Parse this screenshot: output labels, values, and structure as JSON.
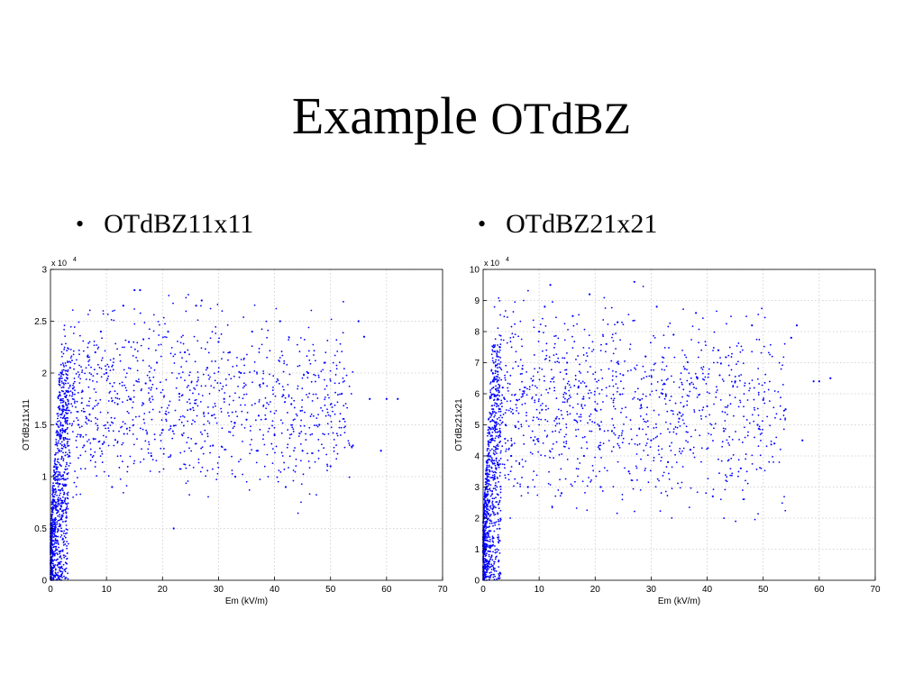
{
  "slide": {
    "title_main": "Example",
    "title_sub": "OTdBZ",
    "bullets": [
      {
        "label": "OTdBZ11x11"
      },
      {
        "label": "OTdBZ21x21"
      }
    ]
  },
  "chart_data": [
    {
      "type": "scatter",
      "xlabel": "Em (kV/m)",
      "ylabel": "OTdBz11x11",
      "xlim": [
        0,
        70
      ],
      "ylim": [
        0,
        30000
      ],
      "x_ticks": [
        0,
        10,
        20,
        30,
        40,
        50,
        60,
        70
      ],
      "y_ticks": [
        0,
        0.5,
        1,
        1.5,
        2,
        2.5,
        3
      ],
      "y_multiplier": "x 10",
      "y_multiplier_exp": "4",
      "grid": true,
      "color": "#0000ff",
      "points": [
        [
          0.3,
          800
        ],
        [
          0.5,
          2500
        ],
        [
          0.8,
          5000
        ],
        [
          1.0,
          7500
        ],
        [
          1.2,
          10000
        ],
        [
          1.5,
          12500
        ],
        [
          1.8,
          14500
        ],
        [
          2.0,
          16000
        ],
        [
          2.5,
          18000
        ],
        [
          3.0,
          19500
        ],
        [
          3.5,
          20500
        ],
        [
          4.0,
          18500
        ],
        [
          5.0,
          15000
        ],
        [
          6.0,
          13000
        ],
        [
          7.0,
          16000
        ],
        [
          8.0,
          22000
        ],
        [
          9.0,
          24000
        ],
        [
          10.0,
          20000
        ],
        [
          11.0,
          9000
        ],
        [
          12.0,
          17000
        ],
        [
          13.0,
          26500
        ],
        [
          14.0,
          23000
        ],
        [
          15.0,
          28000
        ],
        [
          16.0,
          28000
        ],
        [
          17.0,
          19000
        ],
        [
          18.0,
          12000
        ],
        [
          19.0,
          21000
        ],
        [
          20.0,
          14500
        ],
        [
          21.0,
          24000
        ],
        [
          22.0,
          5000
        ],
        [
          23.0,
          18000
        ],
        [
          24.0,
          22000
        ],
        [
          25.0,
          16500
        ],
        [
          26.0,
          26500
        ],
        [
          27.0,
          27000
        ],
        [
          28.0,
          20500
        ],
        [
          29.0,
          13000
        ],
        [
          30.0,
          23000
        ],
        [
          31.0,
          17500
        ],
        [
          32.0,
          22000
        ],
        [
          33.0,
          10000
        ],
        [
          34.0,
          20000
        ],
        [
          35.0,
          15500
        ],
        [
          36.0,
          24000
        ],
        [
          37.0,
          12500
        ],
        [
          38.0,
          19000
        ],
        [
          40.0,
          14000
        ],
        [
          41.0,
          25000
        ],
        [
          42.0,
          9000
        ],
        [
          43.0,
          17000
        ],
        [
          45.0,
          12500
        ],
        [
          46.0,
          20000
        ],
        [
          48.0,
          15000
        ],
        [
          49.0,
          21000
        ],
        [
          50.0,
          11000
        ],
        [
          52.0,
          18000
        ],
        [
          54.0,
          13000
        ],
        [
          55.0,
          25000
        ],
        [
          56.0,
          23500
        ],
        [
          57.0,
          17500
        ],
        [
          59.0,
          12500
        ],
        [
          60.0,
          17500
        ],
        [
          62.0,
          17500
        ]
      ]
    },
    {
      "type": "scatter",
      "xlabel": "Em (kV/m)",
      "ylabel": "OTdBz21x21",
      "xlim": [
        0,
        70
      ],
      "ylim": [
        0,
        100000
      ],
      "x_ticks": [
        0,
        10,
        20,
        30,
        40,
        50,
        60,
        70
      ],
      "y_ticks": [
        0,
        1,
        2,
        3,
        4,
        5,
        6,
        7,
        8,
        9,
        10
      ],
      "y_multiplier": "x 10",
      "y_multiplier_exp": "4",
      "grid": true,
      "color": "#0000ff",
      "points": [
        [
          0.3,
          2000
        ],
        [
          0.5,
          8000
        ],
        [
          0.8,
          15000
        ],
        [
          1.0,
          25000
        ],
        [
          1.2,
          35000
        ],
        [
          1.5,
          45000
        ],
        [
          1.8,
          55000
        ],
        [
          2.0,
          65000
        ],
        [
          2.5,
          72000
        ],
        [
          3.0,
          75000
        ],
        [
          3.5,
          62000
        ],
        [
          4.0,
          50000
        ],
        [
          5.0,
          40000
        ],
        [
          6.0,
          58000
        ],
        [
          7.0,
          68000
        ],
        [
          8.0,
          30000
        ],
        [
          9.0,
          45000
        ],
        [
          10.0,
          80000
        ],
        [
          11.0,
          88000
        ],
        [
          12.0,
          95000
        ],
        [
          13.0,
          52000
        ],
        [
          14.0,
          28000
        ],
        [
          15.0,
          70000
        ],
        [
          16.0,
          85000
        ],
        [
          17.0,
          62000
        ],
        [
          18.0,
          40000
        ],
        [
          19.0,
          92000
        ],
        [
          20.0,
          55000
        ],
        [
          21.0,
          30000
        ],
        [
          22.0,
          76000
        ],
        [
          23.0,
          48000
        ],
        [
          24.0,
          83000
        ],
        [
          25.0,
          66000
        ],
        [
          26.0,
          35000
        ],
        [
          27.0,
          96000
        ],
        [
          28.0,
          58000
        ],
        [
          29.0,
          72000
        ],
        [
          30.0,
          45000
        ],
        [
          31.0,
          88000
        ],
        [
          32.0,
          60000
        ],
        [
          33.0,
          38000
        ],
        [
          34.0,
          79000
        ],
        [
          35.0,
          52000
        ],
        [
          36.0,
          68000
        ],
        [
          37.0,
          42000
        ],
        [
          38.0,
          86000
        ],
        [
          40.0,
          56000
        ],
        [
          41.0,
          27000
        ],
        [
          42.0,
          74000
        ],
        [
          43.0,
          48000
        ],
        [
          45.0,
          64000
        ],
        [
          46.0,
          36000
        ],
        [
          48.0,
          82000
        ],
        [
          49.0,
          50000
        ],
        [
          50.0,
          58000
        ],
        [
          52.0,
          44000
        ],
        [
          54.0,
          55000
        ],
        [
          55.0,
          78000
        ],
        [
          56.0,
          82000
        ],
        [
          57.0,
          45000
        ],
        [
          59.0,
          64000
        ],
        [
          60.0,
          64000
        ],
        [
          62.0,
          65000
        ]
      ]
    }
  ]
}
